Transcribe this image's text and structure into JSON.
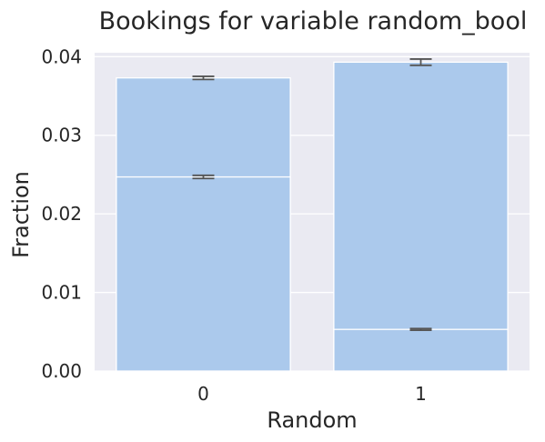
{
  "chart_data": {
    "type": "bar",
    "title": "Bookings for variable random_bool",
    "xlabel": "Random",
    "ylabel": "Fraction",
    "categories": [
      "0",
      "1"
    ],
    "ylim": [
      0,
      0.0405
    ],
    "yticks": [
      0.0,
      0.01,
      0.02,
      0.03,
      0.04
    ],
    "yticklabels": [
      "0.00",
      "0.01",
      "0.02",
      "0.03",
      "0.04"
    ],
    "grid": true,
    "series": [
      {
        "values": [
          0.0373,
          0.0393
        ],
        "errors": [
          0.0002,
          0.0004
        ]
      },
      {
        "values": [
          0.0247,
          0.0053
        ],
        "errors": [
          0.0002,
          0.0001
        ]
      }
    ],
    "colors": {
      "bar": "#abc9ec",
      "plot_background": "#eaeaf2",
      "grid": "#ffffff",
      "errorbar": "#555555"
    }
  }
}
